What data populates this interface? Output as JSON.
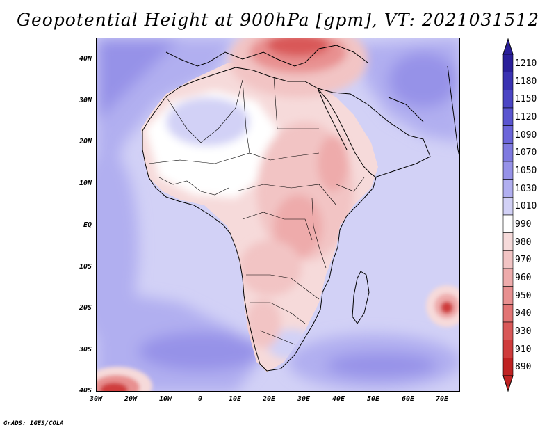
{
  "title": "Geopotential Height at 900hPa [gpm], VT: 2021031512",
  "credit": "GrADS: IGES/COLA",
  "map": {
    "lat_ticks": [
      "40N",
      "30N",
      "20N",
      "10N",
      "EQ",
      "10S",
      "20S",
      "30S",
      "40S"
    ],
    "lon_ticks": [
      "30W",
      "20W",
      "10W",
      "0",
      "10E",
      "20E",
      "30E",
      "40E",
      "50E",
      "60E",
      "70E"
    ]
  },
  "colorbar": {
    "levels": [
      "1210",
      "1180",
      "1150",
      "1120",
      "1090",
      "1070",
      "1050",
      "1030",
      "1010",
      "990",
      "980",
      "970",
      "960",
      "950",
      "940",
      "930",
      "910",
      "890"
    ],
    "colors": [
      "#2a1f9a",
      "#3a32b2",
      "#4b45c4",
      "#5a55d0",
      "#6c66da",
      "#7f7ae0",
      "#9692e8",
      "#b1aff0",
      "#d2d1f6",
      "#ffffff",
      "#f6dada",
      "#f2c4c4",
      "#eeabab",
      "#e89090",
      "#e27474",
      "#d95858",
      "#cf3c3c",
      "#bf2222"
    ]
  },
  "chart_data": {
    "type": "heatmap",
    "title": "Geopotential Height at 900hPa [gpm], VT: 2021031512",
    "variable": "Geopotential Height",
    "level": "900hPa",
    "units": "gpm",
    "valid_time": "2021031512",
    "x_range_deg": [
      -30,
      75
    ],
    "y_range_deg": [
      -40,
      45
    ],
    "x_ticks": [
      "30W",
      "20W",
      "10W",
      "0",
      "10E",
      "20E",
      "30E",
      "40E",
      "50E",
      "60E",
      "70E"
    ],
    "y_ticks": [
      "40N",
      "30N",
      "20N",
      "10N",
      "EQ",
      "10S",
      "20S",
      "30S",
      "40S"
    ],
    "color_levels": [
      1210,
      1180,
      1150,
      1120,
      1090,
      1070,
      1050,
      1030,
      1010,
      990,
      980,
      970,
      960,
      950,
      940,
      930,
      910,
      890
    ]
  }
}
